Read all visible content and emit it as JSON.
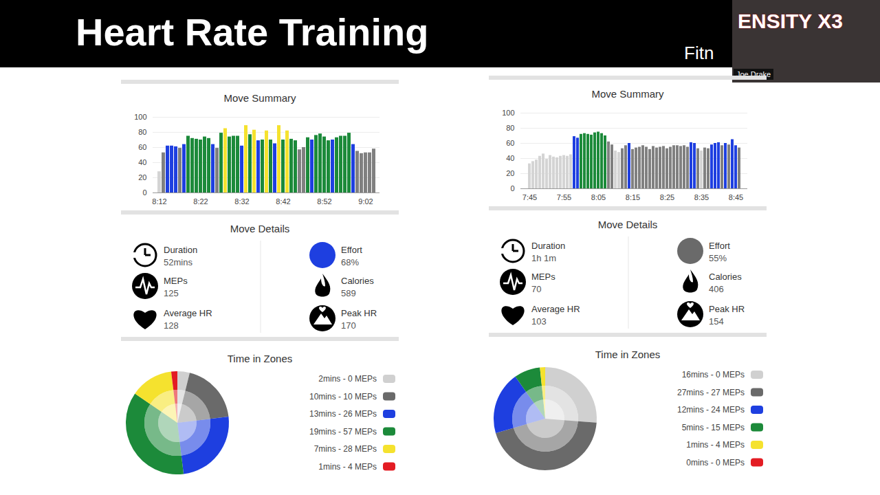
{
  "header": {
    "title": "Heart Rate Training",
    "logo": "Fitn",
    "banner": "ENSITY X3",
    "presenter": "Joe Drake"
  },
  "chart_data": [
    {
      "type": "bar",
      "title": "Move Summary",
      "categories": [
        "8:12",
        null,
        null,
        null,
        null,
        null,
        null,
        null,
        null,
        null,
        "8:22",
        null,
        null,
        null,
        null,
        null,
        null,
        null,
        null,
        null,
        "8:32",
        null,
        null,
        null,
        null,
        null,
        null,
        null,
        null,
        null,
        "8:42",
        null,
        null,
        null,
        null,
        null,
        null,
        null,
        null,
        null,
        "8:52",
        null,
        null,
        null,
        null,
        null,
        null,
        null,
        null,
        null,
        "9:02",
        null,
        null
      ],
      "values": [
        28,
        53,
        62,
        62,
        61,
        59,
        64,
        75,
        72,
        71,
        70,
        74,
        72,
        64,
        59,
        79,
        85,
        74,
        75,
        75,
        62,
        89,
        77,
        83,
        69,
        70,
        82,
        70,
        65,
        89,
        70,
        82,
        71,
        69,
        57,
        60,
        73,
        70,
        76,
        78,
        74,
        69,
        70,
        73,
        75,
        75,
        79,
        64,
        55,
        52,
        53,
        53,
        58
      ],
      "colors": [
        "#d4d4d4",
        "#808080",
        "#1e3fe0",
        "#1e3fe0",
        "#1e3fe0",
        "#808080",
        "#1e3fe0",
        "#1c8a3a",
        "#1c8a3a",
        "#1c8a3a",
        "#1c8a3a",
        "#1c8a3a",
        "#1c8a3a",
        "#1e3fe0",
        "#808080",
        "#1c8a3a",
        "#f5e22e",
        "#1c8a3a",
        "#1c8a3a",
        "#1c8a3a",
        "#1e3fe0",
        "#f5e22e",
        "#1c8a3a",
        "#f5e22e",
        "#1e3fe0",
        "#1c8a3a",
        "#f5e22e",
        "#1c8a3a",
        "#1e3fe0",
        "#f5e22e",
        "#1c8a3a",
        "#f5e22e",
        "#1c8a3a",
        "#1c8a3a",
        "#808080",
        "#808080",
        "#1c8a3a",
        "#1e3fe0",
        "#1c8a3a",
        "#1c8a3a",
        "#1c8a3a",
        "#1c8a3a",
        "#1e3fe0",
        "#1c8a3a",
        "#1c8a3a",
        "#1c8a3a",
        "#1c8a3a",
        "#1e3fe0",
        "#808080",
        "#808080",
        "#808080",
        "#808080",
        "#808080"
      ],
      "ylim": [
        0,
        100
      ],
      "yticks": [
        0,
        20,
        40,
        60,
        80,
        100
      ],
      "grid": true
    },
    {
      "type": "pie",
      "title": "Time in Zones",
      "categories": [
        "2mins - 0 MEPs",
        "10mins - 10 MEPs",
        "13mins - 26 MEPs",
        "19mins - 57 MEPs",
        "7mins - 28 MEPs",
        "1mins - 4 MEPs"
      ],
      "values": [
        2,
        10,
        13,
        19,
        7,
        1
      ],
      "colors": [
        "#d0d0d0",
        "#6a6a6a",
        "#1e3fe0",
        "#1c8a3a",
        "#f5e22e",
        "#e31c23"
      ],
      "legend": "right"
    },
    {
      "type": "bar",
      "title": "Move Summary",
      "categories": [
        "7:45",
        null,
        null,
        null,
        null,
        null,
        null,
        null,
        null,
        null,
        "7:55",
        null,
        null,
        null,
        null,
        null,
        null,
        null,
        null,
        null,
        "8:05",
        null,
        null,
        null,
        null,
        null,
        null,
        null,
        null,
        null,
        "8:15",
        null,
        null,
        null,
        null,
        null,
        null,
        null,
        null,
        null,
        "8:25",
        null,
        null,
        null,
        null,
        null,
        null,
        null,
        null,
        null,
        "8:35",
        null,
        null,
        null,
        null,
        null,
        null,
        null,
        null,
        null,
        "8:45",
        null
      ],
      "values": [
        33,
        36,
        38,
        43,
        46,
        39,
        44,
        42,
        41,
        43,
        44,
        43,
        45,
        69,
        67,
        72,
        73,
        72,
        71,
        74,
        75,
        73,
        70,
        62,
        58,
        50,
        48,
        53,
        57,
        60,
        52,
        54,
        55,
        57,
        55,
        52,
        56,
        54,
        55,
        56,
        53,
        55,
        57,
        57,
        56,
        57,
        55,
        61,
        60,
        53,
        50,
        54,
        53,
        58,
        60,
        61,
        57,
        60,
        58,
        65,
        57,
        54
      ],
      "colors": [
        "#d4d4d4",
        "#d4d4d4",
        "#d4d4d4",
        "#d4d4d4",
        "#d4d4d4",
        "#d4d4d4",
        "#d4d4d4",
        "#d4d4d4",
        "#d4d4d4",
        "#d4d4d4",
        "#d4d4d4",
        "#d4d4d4",
        "#d4d4d4",
        "#1e3fe0",
        "#1e3fe0",
        "#1c8a3a",
        "#1c8a3a",
        "#1c8a3a",
        "#1c8a3a",
        "#1c8a3a",
        "#1c8a3a",
        "#1c8a3a",
        "#1c8a3a",
        "#808080",
        "#808080",
        "#d4d4d4",
        "#d4d4d4",
        "#808080",
        "#808080",
        "#1e3fe0",
        "#808080",
        "#808080",
        "#808080",
        "#808080",
        "#808080",
        "#808080",
        "#808080",
        "#808080",
        "#808080",
        "#808080",
        "#808080",
        "#808080",
        "#808080",
        "#808080",
        "#808080",
        "#808080",
        "#808080",
        "#1e3fe0",
        "#1e3fe0",
        "#808080",
        "#d4d4d4",
        "#808080",
        "#808080",
        "#1e3fe0",
        "#1e3fe0",
        "#1e3fe0",
        "#808080",
        "#1e3fe0",
        "#808080",
        "#1e3fe0",
        "#1e3fe0",
        "#808080"
      ],
      "ylim": [
        0,
        100
      ],
      "yticks": [
        0,
        20,
        40,
        60,
        80,
        100
      ],
      "grid": true
    },
    {
      "type": "pie",
      "title": "Time in Zones",
      "categories": [
        "16mins - 0 MEPs",
        "27mins - 27 MEPs",
        "12mins - 24 MEPs",
        "5mins - 15 MEPs",
        "1mins - 4 MEPs",
        "0mins - 0 MEPs"
      ],
      "values": [
        16,
        27,
        12,
        5,
        1,
        0
      ],
      "colors": [
        "#d0d0d0",
        "#6a6a6a",
        "#1e3fe0",
        "#1c8a3a",
        "#f5e22e",
        "#e31c23"
      ],
      "legend": "right"
    }
  ],
  "details": [
    {
      "title": "Move Details",
      "items": [
        {
          "label": "Duration",
          "value": "52mins"
        },
        {
          "label": "MEPs",
          "value": "125"
        },
        {
          "label": "Average HR",
          "value": "128"
        },
        {
          "label": "Effort",
          "value": "68%",
          "color": "#1e3fe0"
        },
        {
          "label": "Calories",
          "value": "589"
        },
        {
          "label": "Peak HR",
          "value": "170"
        }
      ]
    },
    {
      "title": "Move Details",
      "items": [
        {
          "label": "Duration",
          "value": "1h 1m"
        },
        {
          "label": "MEPs",
          "value": "70"
        },
        {
          "label": "Average HR",
          "value": "103"
        },
        {
          "label": "Effort",
          "value": "55%",
          "color": "#6a6a6a"
        },
        {
          "label": "Calories",
          "value": "406"
        },
        {
          "label": "Peak HR",
          "value": "154"
        }
      ]
    }
  ]
}
